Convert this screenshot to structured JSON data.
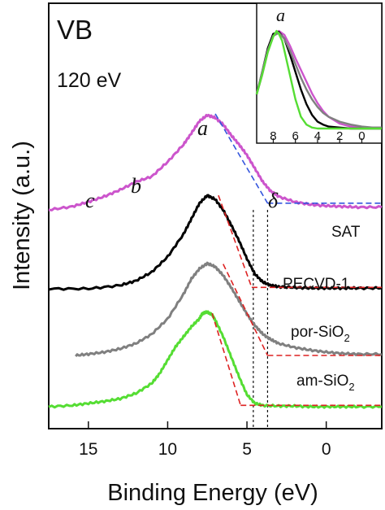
{
  "chart_data": {
    "type": "line",
    "xlabel": "Binding Energy (eV)",
    "ylabel": "Intensity (a.u.)",
    "xlim": [
      17.5,
      -3.5
    ],
    "x_ticks": [
      15,
      10,
      5,
      0
    ],
    "x_tick_labels": [
      "15",
      "10",
      "5",
      "0"
    ],
    "annotations": {
      "title": "VB",
      "energy": "120 eV",
      "peaks": [
        "a",
        "b",
        "c",
        "δ"
      ]
    },
    "colors": {
      "SAT": "#cc55cc",
      "PECVD-1": "#000000",
      "por-SiO2": "#808080",
      "am-SiO2": "#55dd33",
      "fit": "#dd2222",
      "fit_SAT": "#3355dd"
    },
    "series": [
      {
        "name": "SAT",
        "label_main": "SAT",
        "label_sub": "",
        "x": [
          17.5,
          16,
          15,
          14,
          13,
          12,
          11,
          10,
          9,
          8.5,
          8,
          7.5,
          7,
          6.5,
          6,
          5.5,
          5,
          4.5,
          4,
          3.5,
          3,
          2,
          1,
          0,
          -1,
          -2,
          -3.5
        ],
        "y": [
          0.0,
          0.05,
          0.12,
          0.2,
          0.3,
          0.42,
          0.5,
          0.72,
          0.98,
          1.15,
          1.33,
          1.42,
          1.38,
          1.28,
          1.12,
          0.98,
          0.82,
          0.62,
          0.42,
          0.28,
          0.2,
          0.12,
          0.08,
          0.06,
          0.05,
          0.04,
          0.04
        ]
      },
      {
        "name": "PECVD-1",
        "label_main": "PECVD-1",
        "label_sub": "",
        "x": [
          17.5,
          15,
          13,
          12,
          11,
          10,
          9,
          8.5,
          8,
          7.5,
          7,
          6.5,
          6,
          5.5,
          5,
          4.5,
          4,
          3.5,
          3,
          2,
          1,
          0,
          -1,
          -2,
          -3.5
        ],
        "y": [
          0.0,
          0.0,
          0.05,
          0.12,
          0.25,
          0.48,
          0.82,
          1.05,
          1.28,
          1.4,
          1.34,
          1.18,
          0.96,
          0.72,
          0.45,
          0.22,
          0.1,
          0.05,
          0.03,
          0.02,
          0.01,
          0.01,
          0.01,
          0.01,
          0.01
        ]
      },
      {
        "name": "por-SiO2",
        "label_main": "por-SiO",
        "label_sub": "2",
        "x": [
          15.8,
          15,
          14,
          13,
          12,
          11,
          10,
          9,
          8.5,
          8,
          7.5,
          7,
          6.5,
          6,
          5.5,
          5,
          4.5,
          4,
          3.5,
          3,
          2,
          1,
          0,
          -1,
          -2,
          -3.5
        ],
        "y": [
          0.0,
          0.02,
          0.05,
          0.1,
          0.18,
          0.32,
          0.55,
          0.92,
          1.15,
          1.3,
          1.38,
          1.33,
          1.2,
          1.02,
          0.82,
          0.62,
          0.45,
          0.32,
          0.24,
          0.18,
          0.12,
          0.08,
          0.05,
          0.03,
          0.02,
          0.02
        ]
      },
      {
        "name": "am-SiO2",
        "label_main": "am-SiO",
        "label_sub": "2",
        "x": [
          17.5,
          16,
          15,
          14,
          13,
          12,
          11,
          10.5,
          10,
          9.5,
          9,
          8.5,
          8,
          7.8,
          7.5,
          7.2,
          7,
          6.5,
          6,
          5.5,
          5,
          4.5,
          4,
          3,
          2,
          1,
          0,
          -1,
          -2,
          -3.5
        ],
        "y": [
          0.0,
          0.02,
          0.05,
          0.08,
          0.12,
          0.2,
          0.35,
          0.5,
          0.7,
          0.9,
          1.05,
          1.2,
          1.32,
          1.4,
          1.42,
          1.38,
          1.3,
          1.05,
          0.75,
          0.45,
          0.18,
          0.05,
          0.02,
          0.01,
          0.01,
          0.0,
          0.0,
          0.0,
          0.0,
          0.0
        ]
      }
    ],
    "fits": [
      {
        "series": "SAT",
        "x": [
          7.0,
          3.7
        ],
        "y": [
          1.44,
          0.1
        ]
      },
      {
        "series": "SAT",
        "x": [
          3.7,
          -3.5
        ],
        "y": [
          0.1,
          0.1
        ]
      },
      {
        "series": "PECVD-1",
        "x": [
          6.8,
          4.7
        ],
        "y": [
          1.4,
          0.02
        ]
      },
      {
        "series": "PECVD-1",
        "x": [
          4.7,
          -3.5
        ],
        "y": [
          0.02,
          0.02
        ]
      },
      {
        "series": "por-SiO2",
        "x": [
          6.5,
          3.7
        ],
        "y": [
          1.37,
          0.0
        ]
      },
      {
        "series": "por-SiO2",
        "x": [
          3.7,
          -3.5
        ],
        "y": [
          0.0,
          0.0
        ]
      },
      {
        "series": "am-SiO2",
        "x": [
          7.2,
          5.4
        ],
        "y": [
          1.4,
          0.02
        ]
      },
      {
        "series": "am-SiO2",
        "x": [
          5.4,
          -3.5
        ],
        "y": [
          0.02,
          0.02
        ]
      }
    ],
    "vlines": [
      4.6,
      3.7
    ],
    "inset": {
      "xlim": [
        9.5,
        -1.8
      ],
      "x_ticks": [
        8,
        6,
        4,
        2,
        0
      ],
      "x_tick_labels": [
        "8",
        "6",
        "4",
        "2",
        "0"
      ],
      "peak": "a",
      "series": [
        {
          "name": "SAT",
          "x": [
            9.5,
            9,
            8.5,
            8,
            7.5,
            7,
            6.5,
            6,
            5.5,
            5,
            4.5,
            4,
            3.5,
            3,
            2,
            1,
            0,
            -1,
            -1.8
          ],
          "y": [
            0.35,
            0.55,
            0.78,
            0.95,
            1.0,
            0.96,
            0.85,
            0.72,
            0.6,
            0.48,
            0.36,
            0.26,
            0.18,
            0.12,
            0.05,
            0.02,
            0.01,
            0.01,
            0.01
          ]
        },
        {
          "name": "PECVD-1",
          "x": [
            9.5,
            9,
            8.5,
            8,
            7.5,
            7,
            6.5,
            6,
            5.5,
            5,
            4.5,
            4,
            3.5,
            3,
            2,
            1,
            0,
            -1,
            -1.8
          ],
          "y": [
            0.35,
            0.58,
            0.82,
            0.97,
            0.99,
            0.92,
            0.76,
            0.58,
            0.4,
            0.25,
            0.14,
            0.07,
            0.04,
            0.02,
            0.01,
            0.0,
            0.0,
            0.0,
            0.0
          ]
        },
        {
          "name": "por-SiO2",
          "x": [
            9.5,
            9,
            8.5,
            8,
            7.5,
            7,
            6.5,
            6,
            5.5,
            5,
            4.5,
            4,
            3.5,
            3,
            2,
            1,
            0,
            -1,
            -1.8
          ],
          "y": [
            0.35,
            0.58,
            0.8,
            0.95,
            0.98,
            0.92,
            0.8,
            0.66,
            0.52,
            0.4,
            0.3,
            0.22,
            0.16,
            0.12,
            0.07,
            0.04,
            0.02,
            0.01,
            0.01
          ]
        },
        {
          "name": "am-SiO2",
          "x": [
            9.5,
            9,
            8.5,
            8,
            7.7,
            7.5,
            7.2,
            7,
            6.5,
            6,
            5.5,
            5,
            4.5,
            4,
            3,
            2,
            1,
            0,
            -1.8
          ],
          "y": [
            0.35,
            0.55,
            0.78,
            0.94,
            1.0,
            0.97,
            0.9,
            0.8,
            0.55,
            0.3,
            0.12,
            0.04,
            0.01,
            0.0,
            0.0,
            0.0,
            0.0,
            0.0,
            0.0
          ]
        }
      ]
    }
  }
}
